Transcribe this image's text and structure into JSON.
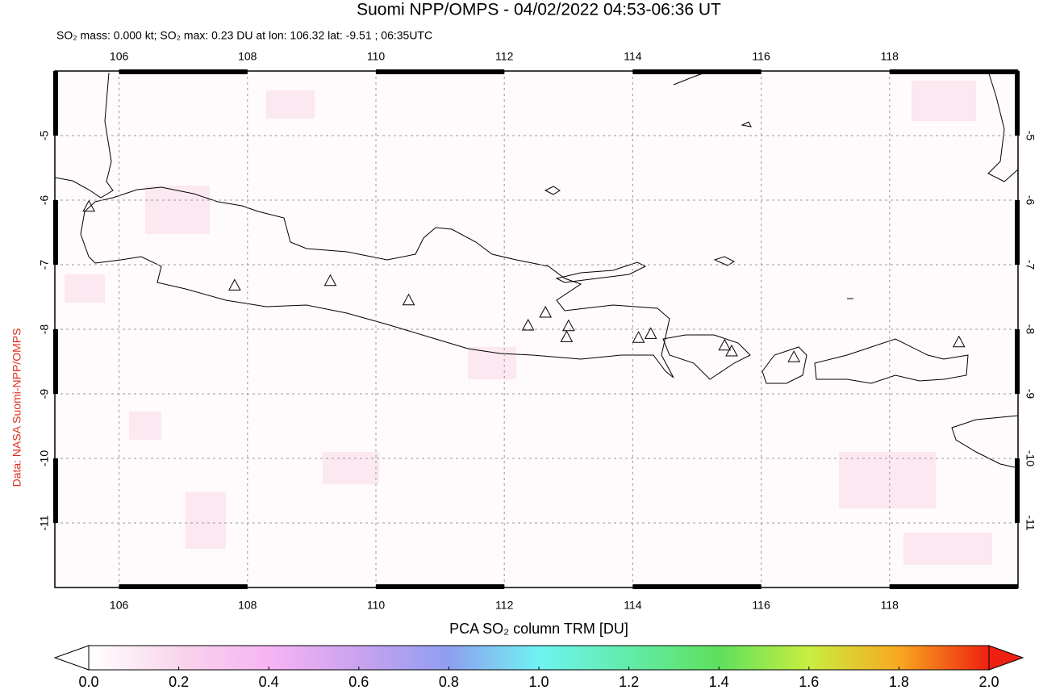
{
  "map": {
    "title": "Suomi NPP/OMPS - 04/02/2022 04:53-06:36 UT",
    "subtitle": "SO₂ mass: 0.000 kt; SO₂ max: 0.23 DU at lon: 106.32 lat: -9.51 ; 06:35UTC",
    "side_label": "Data: NASA Suomi-NPP/OMPS",
    "xlim": [
      105,
      120
    ],
    "ylim": [
      -12,
      -4
    ],
    "xticks": [
      106,
      108,
      110,
      112,
      114,
      116,
      118
    ],
    "yticks": [
      -5,
      -6,
      -7,
      -8,
      -9,
      -10,
      -11
    ],
    "grid": true,
    "volcanoes": {
      "lon": [
        105.53,
        107.8,
        109.29,
        110.51,
        112.37,
        112.64,
        113.0,
        112.97,
        114.09,
        114.28,
        115.43,
        115.54,
        116.51,
        119.08
      ],
      "lat": [
        -6.11,
        -7.33,
        -7.26,
        -7.56,
        -7.95,
        -7.75,
        -7.96,
        -8.13,
        -8.14,
        -8.08,
        -8.26,
        -8.35,
        -8.44,
        -8.21
      ]
    },
    "colorbar": {
      "label": "PCA SO₂ column TRM [DU]",
      "lim": [
        0,
        2
      ],
      "ticks": [
        {
          "value": 0,
          "label": "0.0"
        },
        {
          "value": 0.2,
          "label": "0.2"
        },
        {
          "value": 0.4,
          "label": "0.4"
        },
        {
          "value": 0.6,
          "label": "0.6"
        },
        {
          "value": 0.8,
          "label": "0.8"
        },
        {
          "value": 1,
          "label": "1.0"
        },
        {
          "value": 1.2,
          "label": "1.2"
        },
        {
          "value": 1.4,
          "label": "1.4"
        },
        {
          "value": 1.6,
          "label": "1.6"
        },
        {
          "value": 1.8,
          "label": "1.8"
        },
        {
          "value": 2,
          "label": "2.0"
        }
      ]
    }
  }
}
